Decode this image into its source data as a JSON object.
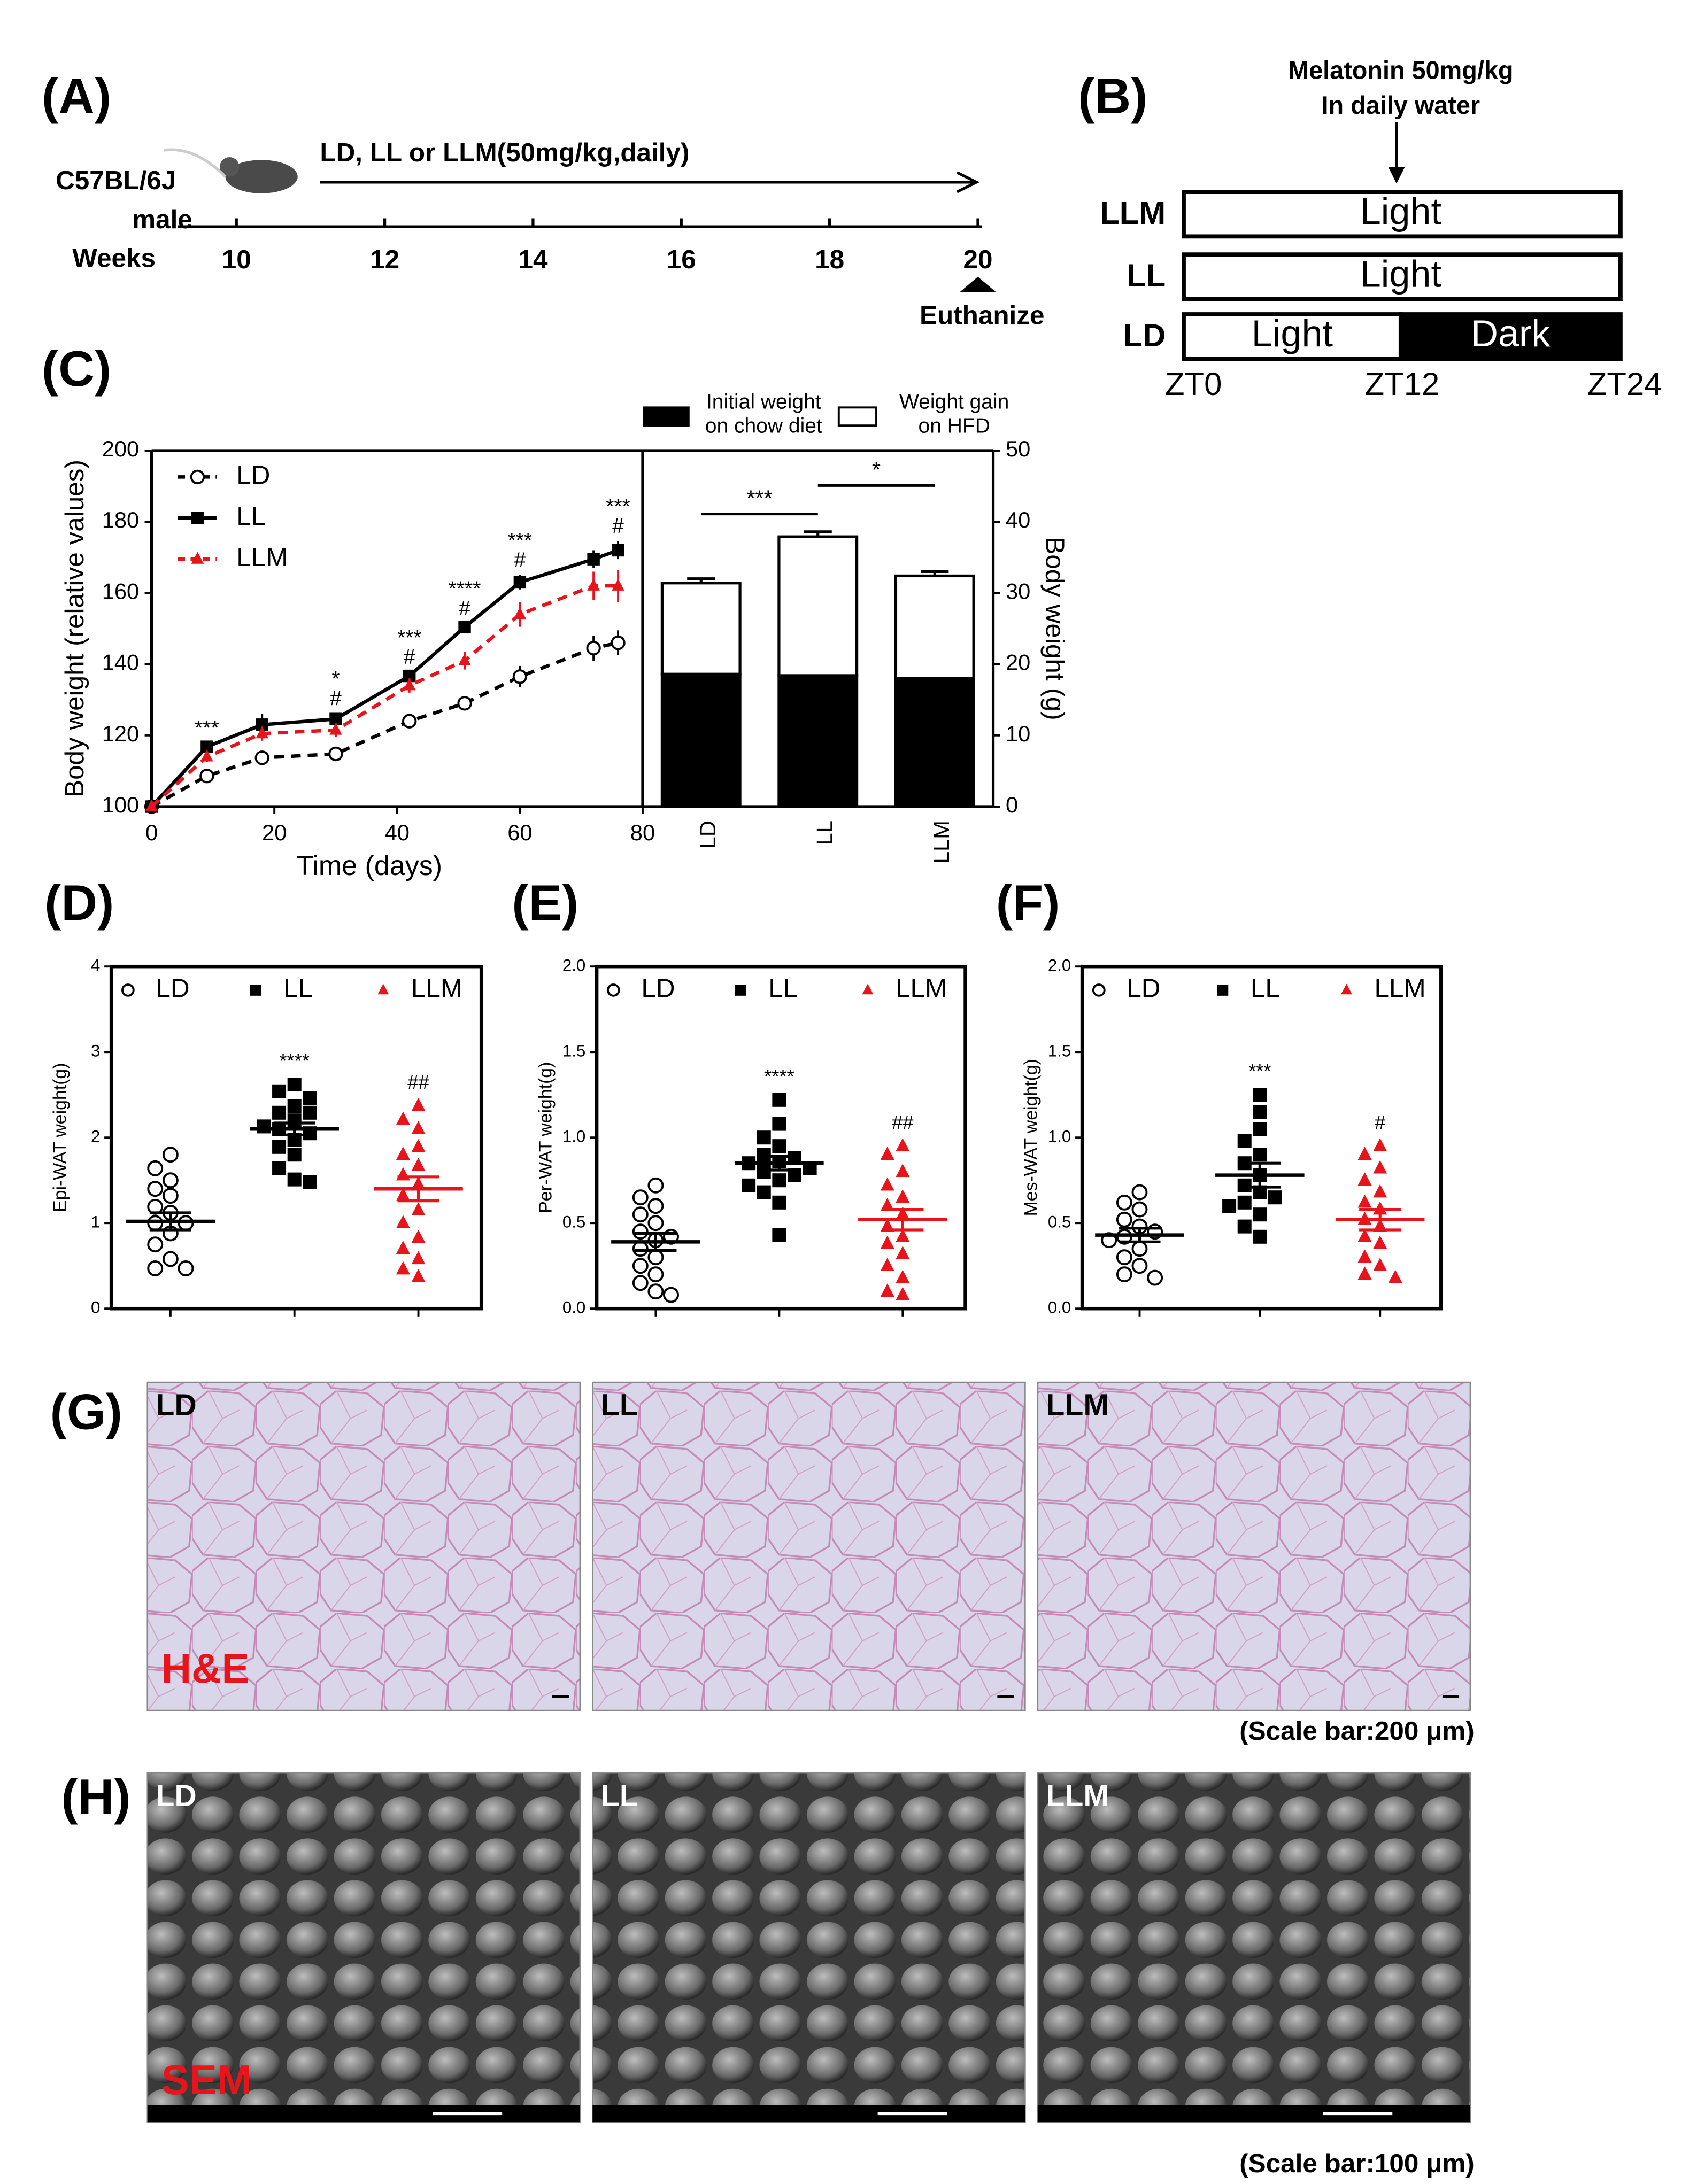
{
  "panel_a": {
    "label": "(A)",
    "strain": "C57BL/6J",
    "sex": "male",
    "axis_label": "Weeks",
    "weeks": [
      10,
      12,
      14,
      16,
      18,
      20
    ],
    "treatment": "LD, LL or LLM(50mg/kg,daily)",
    "endpoint": "Euthanize"
  },
  "panel_b": {
    "label": "(B)",
    "treatment": [
      "Melatonin 50mg/kg",
      "In daily water"
    ],
    "rows": [
      {
        "name": "LLM",
        "phases": [
          "Light"
        ]
      },
      {
        "name": "LL",
        "phases": [
          "Light"
        ]
      },
      {
        "name": "LD",
        "phases": [
          "Light",
          "Dark"
        ]
      }
    ],
    "zt_labels": [
      "ZT0",
      "ZT12",
      "ZT24"
    ]
  },
  "chart_data": [
    {
      "type": "line",
      "panel_label": "(C)",
      "xlabel": "Time (days)",
      "ylabel": "Body weight (relative values)",
      "x": [
        0,
        9,
        18,
        30,
        42,
        51,
        60,
        72,
        76
      ],
      "xlim": [
        0,
        80
      ],
      "xticks": [
        0,
        20,
        40,
        60,
        80
      ],
      "ylim": [
        100,
        200
      ],
      "yticks": [
        100,
        120,
        140,
        160,
        180,
        200
      ],
      "series": [
        {
          "name": "LD",
          "color": "#000000",
          "dash": true,
          "marker": "open-circle",
          "values": [
            100,
            108.6,
            113.7,
            114.8,
            124,
            129,
            136.5,
            144.5,
            146
          ],
          "errors": [
            0,
            1,
            1.5,
            1.5,
            1.5,
            2,
            3,
            3.5,
            3.5
          ]
        },
        {
          "name": "LL",
          "color": "#000000",
          "dash": false,
          "marker": "square",
          "values": [
            100,
            116.8,
            123,
            124.6,
            136.7,
            150.4,
            163,
            169.5,
            172
          ],
          "errors": [
            0,
            1,
            3,
            1.5,
            1,
            1,
            2,
            2.5,
            2.5
          ]
        },
        {
          "name": "LLM",
          "color": "#e8141b",
          "dash": true,
          "marker": "triangle",
          "values": [
            100,
            114,
            120.5,
            121.5,
            134,
            141,
            154,
            162,
            162
          ],
          "errors": [
            0,
            1.5,
            2,
            2,
            2,
            2.5,
            3.5,
            4,
            4.5
          ]
        }
      ],
      "annotations": [
        {
          "x": 9,
          "text": [
            "***"
          ]
        },
        {
          "x": 30,
          "text": [
            "*",
            "#"
          ]
        },
        {
          "x": 42,
          "text": [
            "***",
            "#"
          ]
        },
        {
          "x": 51,
          "text": [
            "****",
            "#"
          ]
        },
        {
          "x": 60,
          "text": [
            "***",
            "#"
          ]
        },
        {
          "x": 76,
          "text": [
            "***",
            "#"
          ]
        }
      ]
    },
    {
      "type": "stacked-bar",
      "ylabel": "Body weight (g)",
      "categories": [
        "LD",
        "LL",
        "LLM"
      ],
      "ylim": [
        0,
        50
      ],
      "yticks": [
        0,
        10,
        20,
        30,
        40,
        50
      ],
      "series": [
        {
          "name": "Initial weight\non chow diet",
          "color": "#000000",
          "values": [
            18.6,
            18.4,
            18.0
          ]
        },
        {
          "name": "Weight gain\non HFD",
          "color": "#ffffff",
          "values": [
            12.8,
            19.5,
            14.4
          ],
          "errors": [
            0.6,
            0.7,
            0.6
          ]
        }
      ],
      "brackets": [
        {
          "between": [
            "LD",
            "LL"
          ],
          "text": "***"
        },
        {
          "between": [
            "LL",
            "LLM"
          ],
          "text": "*"
        }
      ]
    },
    {
      "type": "dot-plot",
      "panel_label": "(D)",
      "ylabel": "Epi-WAT weight(g)",
      "ylim": [
        0,
        4
      ],
      "yticks": [
        0,
        1,
        2,
        3,
        4
      ],
      "series": [
        {
          "name": "LD",
          "color": "#000000",
          "marker": "open-circle",
          "values": [
            1.8,
            1.64,
            1.5,
            1.4,
            1.32,
            1.19,
            1.12,
            1.0,
            1.0,
            0.88,
            0.75,
            0.58,
            0.47,
            0.47
          ],
          "mean": 1.02,
          "sem": 0.1
        },
        {
          "name": "LL",
          "color": "#000000",
          "marker": "square",
          "values": [
            2.62,
            2.54,
            2.46,
            2.37,
            2.29,
            2.29,
            2.2,
            2.13,
            2.1,
            2.05,
            1.97,
            1.89,
            1.8,
            1.64,
            1.51,
            1.48
          ],
          "mean": 2.1,
          "sem": 0.07,
          "annotation": "****"
        },
        {
          "name": "LLM",
          "color": "#e8141b",
          "marker": "triangle",
          "values": [
            2.37,
            2.21,
            2.1,
            1.89,
            1.8,
            1.67,
            1.56,
            1.45,
            1.32,
            1.15,
            1.0,
            0.83,
            0.7,
            0.58,
            0.46,
            0.37
          ],
          "mean": 1.4,
          "sem": 0.14,
          "annotation": "##"
        }
      ]
    },
    {
      "type": "dot-plot",
      "panel_label": "(E)",
      "ylabel": "Per-WAT weight(g)",
      "ylim": [
        0,
        2
      ],
      "yticks": [
        {
          "value": 0,
          "label": "0.0"
        },
        0.5,
        {
          "value": 1,
          "label": "1.0"
        },
        1.5,
        {
          "value": 2,
          "label": "2.0"
        }
      ],
      "series": [
        {
          "name": "LD",
          "color": "#000000",
          "marker": "open-circle",
          "values": [
            0.72,
            0.65,
            0.6,
            0.55,
            0.5,
            0.45,
            0.42,
            0.4,
            0.35,
            0.3,
            0.25,
            0.2,
            0.15,
            0.1,
            0.08
          ],
          "mean": 0.39,
          "sem": 0.05
        },
        {
          "name": "LL",
          "color": "#000000",
          "marker": "square",
          "values": [
            1.22,
            1.08,
            1.0,
            0.95,
            0.9,
            0.88,
            0.86,
            0.85,
            0.82,
            0.8,
            0.78,
            0.75,
            0.72,
            0.68,
            0.62,
            0.43
          ],
          "mean": 0.85,
          "sem": 0.04,
          "annotation": "****"
        },
        {
          "name": "LLM",
          "color": "#e8141b",
          "marker": "triangle",
          "values": [
            0.95,
            0.9,
            0.8,
            0.72,
            0.65,
            0.6,
            0.55,
            0.48,
            0.42,
            0.38,
            0.32,
            0.25,
            0.18,
            0.1,
            0.08
          ],
          "mean": 0.52,
          "sem": 0.06,
          "annotation": "##"
        }
      ]
    },
    {
      "type": "dot-plot",
      "panel_label": "(F)",
      "ylabel": "Mes-WAT weight(g)",
      "ylim": [
        0,
        2
      ],
      "yticks": [
        {
          "value": 0,
          "label": "0.0"
        },
        0.5,
        {
          "value": 1,
          "label": "1.0"
        },
        1.5,
        {
          "value": 2,
          "label": "2.0"
        }
      ],
      "series": [
        {
          "name": "LD",
          "color": "#000000",
          "marker": "open-circle",
          "values": [
            0.68,
            0.62,
            0.58,
            0.52,
            0.48,
            0.45,
            0.42,
            0.4,
            0.35,
            0.3,
            0.25,
            0.2,
            0.18
          ],
          "mean": 0.43,
          "sem": 0.04
        },
        {
          "name": "LL",
          "color": "#000000",
          "marker": "square",
          "values": [
            1.25,
            1.15,
            1.05,
            0.98,
            0.9,
            0.85,
            0.78,
            0.72,
            0.68,
            0.65,
            0.62,
            0.6,
            0.55,
            0.48,
            0.42
          ],
          "mean": 0.78,
          "sem": 0.07,
          "annotation": "***"
        },
        {
          "name": "LLM",
          "color": "#e8141b",
          "marker": "triangle",
          "values": [
            0.95,
            0.9,
            0.82,
            0.75,
            0.68,
            0.62,
            0.58,
            0.52,
            0.48,
            0.42,
            0.38,
            0.3,
            0.25,
            0.2,
            0.18
          ],
          "mean": 0.52,
          "sem": 0.06,
          "annotation": "#"
        }
      ]
    }
  ],
  "panel_g": {
    "label": "(G)",
    "images": [
      "LD",
      "LL",
      "LLM"
    ],
    "stain": "H&E",
    "scale_note": "(Scale bar:200 μm)"
  },
  "panel_h": {
    "label": "(H)",
    "images": [
      "LD",
      "LL",
      "LLM"
    ],
    "stain": "SEM",
    "scale_note": "(Scale bar:100 μm)"
  }
}
